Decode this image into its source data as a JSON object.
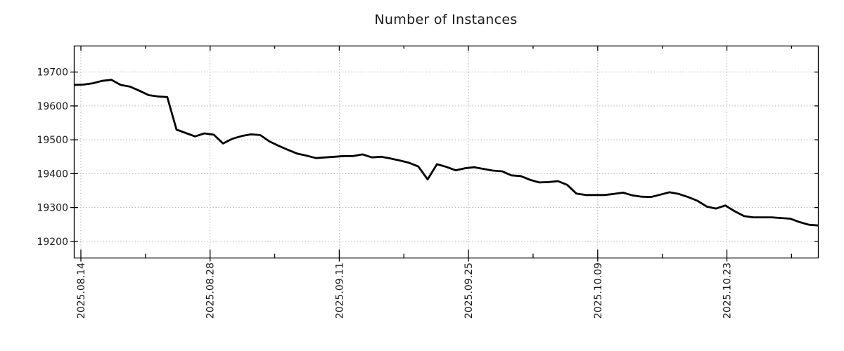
{
  "chart_data": {
    "type": "line",
    "title": "Number of Instances",
    "xlabel": "",
    "ylabel": "",
    "legend": {
      "visible": false
    },
    "grid": {
      "visible": true,
      "style": "dotted",
      "color": "#b3b3b3"
    },
    "background": "#ffffff",
    "text_color": "#1a1a1a",
    "y_ticks": [
      19200,
      19300,
      19400,
      19500,
      19600,
      19700
    ],
    "ylim": [
      19151,
      19777
    ],
    "x_ticks": {
      "major_labels": [
        "2025.08.14",
        "2025.08.28",
        "2025.09.11",
        "2025.09.25",
        "2025.10.09",
        "2025.10.23"
      ]
    },
    "series": [
      {
        "name": "instances",
        "color": "#000000",
        "x": [
          "2025.08.13",
          "2025.08.14",
          "2025.08.15",
          "2025.08.16",
          "2025.08.17",
          "2025.08.18",
          "2025.08.19",
          "2025.08.20",
          "2025.08.21",
          "2025.08.22",
          "2025.08.23",
          "2025.08.24",
          "2025.08.25",
          "2025.08.26",
          "2025.08.27",
          "2025.08.28",
          "2025.08.29",
          "2025.08.30",
          "2025.08.31",
          "2025.09.01",
          "2025.09.02",
          "2025.09.03",
          "2025.09.04",
          "2025.09.05",
          "2025.09.06",
          "2025.09.07",
          "2025.09.08",
          "2025.09.09",
          "2025.09.10",
          "2025.09.11",
          "2025.09.12",
          "2025.09.13",
          "2025.09.14",
          "2025.09.15",
          "2025.09.16",
          "2025.09.17",
          "2025.09.18",
          "2025.09.19",
          "2025.09.20",
          "2025.09.21",
          "2025.09.22",
          "2025.09.23",
          "2025.09.24",
          "2025.09.25",
          "2025.09.26",
          "2025.09.27",
          "2025.09.28",
          "2025.09.29",
          "2025.09.30",
          "2025.10.01",
          "2025.10.02",
          "2025.10.03",
          "2025.10.04",
          "2025.10.05",
          "2025.10.06",
          "2025.10.07",
          "2025.10.08",
          "2025.10.09",
          "2025.10.10",
          "2025.10.11",
          "2025.10.12",
          "2025.10.13",
          "2025.10.14",
          "2025.10.15",
          "2025.10.16",
          "2025.10.17",
          "2025.10.18",
          "2025.10.19",
          "2025.10.20",
          "2025.10.21",
          "2025.10.22",
          "2025.10.23",
          "2025.10.24",
          "2025.10.25",
          "2025.10.26",
          "2025.10.27",
          "2025.10.28",
          "2025.10.29",
          "2025.10.30",
          "2025.10.31",
          "2025.11.01"
        ],
        "values": [
          19662,
          19663,
          19667,
          19674,
          19677,
          19662,
          19657,
          19645,
          19632,
          19628,
          19626,
          19530,
          19520,
          19510,
          19519,
          19515,
          19489,
          19503,
          19511,
          19516,
          19514,
          19495,
          19482,
          19470,
          19459,
          19453,
          19446,
          19448,
          19450,
          19452,
          19452,
          19457,
          19448,
          19450,
          19445,
          19439,
          19432,
          19421,
          19383,
          19428,
          19420,
          19410,
          19416,
          19419,
          19414,
          19409,
          19407,
          19395,
          19393,
          19382,
          19374,
          19375,
          19378,
          19367,
          19341,
          19337,
          19337,
          19337,
          19340,
          19344,
          19336,
          19332,
          19331,
          19338,
          19345,
          19340,
          19331,
          19320,
          19303,
          19297,
          19306,
          19289,
          19275,
          19271,
          19271,
          19271,
          19269,
          19267,
          19257,
          19249,
          19247
        ]
      }
    ]
  }
}
